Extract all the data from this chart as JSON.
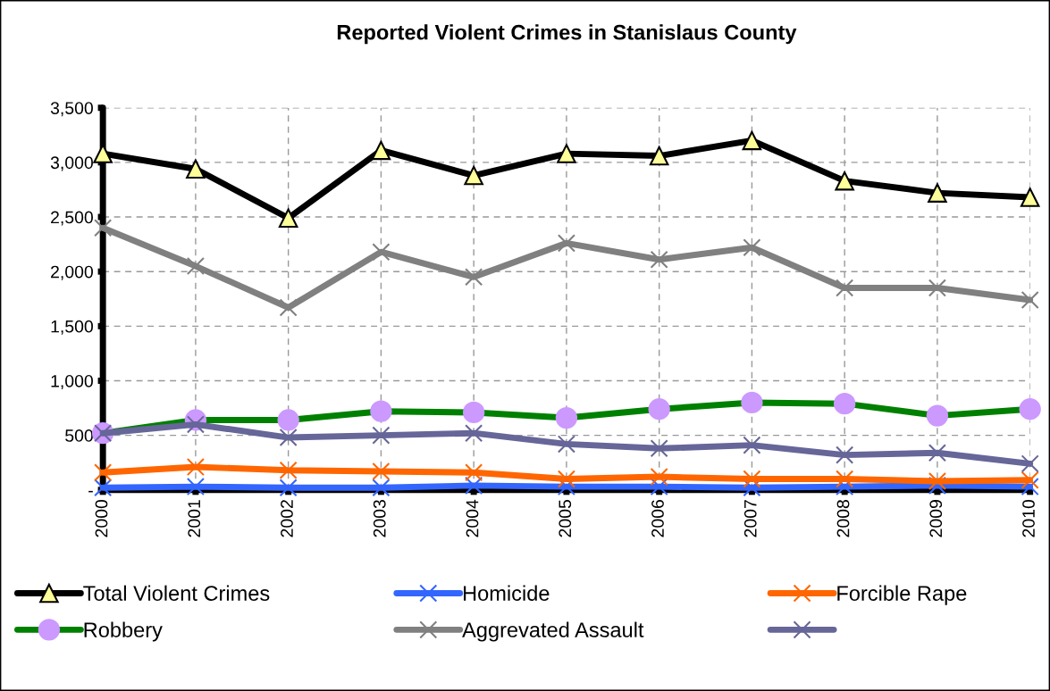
{
  "chart_data": {
    "type": "line",
    "title": "Reported Violent Crimes in Stanislaus County",
    "categories": [
      "2000",
      "2001",
      "2002",
      "2003",
      "2004",
      "2005",
      "2006",
      "2007",
      "2008",
      "2009",
      "2010"
    ],
    "series": [
      {
        "name": "Total Violent Crimes",
        "color": "#000000",
        "marker": "triangle",
        "values": [
          3080,
          2940,
          2490,
          3110,
          2880,
          3080,
          3060,
          3200,
          2830,
          2720,
          2680
        ]
      },
      {
        "name": "Homicide",
        "color": "#3366ff",
        "marker": "cross",
        "values": [
          20,
          30,
          20,
          20,
          40,
          30,
          30,
          20,
          30,
          40,
          30
        ]
      },
      {
        "name": "Forcible Rape",
        "color": "#ff6600",
        "marker": "cross",
        "values": [
          160,
          210,
          180,
          170,
          160,
          100,
          120,
          100,
          100,
          80,
          90
        ]
      },
      {
        "name": "Robbery",
        "color": "#008000",
        "marker": "circle",
        "values": [
          520,
          640,
          640,
          720,
          710,
          660,
          740,
          800,
          790,
          680,
          740
        ]
      },
      {
        "name": "Aggrevated Assault",
        "color": "#808080",
        "marker": "cross",
        "values": [
          2400,
          2050,
          1670,
          2180,
          1950,
          2260,
          2110,
          2220,
          1850,
          1850,
          1740
        ]
      },
      {
        "color": "#666699",
        "marker": "cross",
        "values": [
          520,
          600,
          480,
          500,
          520,
          420,
          380,
          410,
          320,
          340,
          240
        ]
      }
    ],
    "ylim": [
      0,
      3500
    ],
    "yticks": [
      {
        "value": 0,
        "label": "-"
      },
      500,
      {
        "value": 1000,
        "label": "1,000"
      },
      {
        "value": 1500,
        "label": "1,500"
      },
      {
        "value": 2000,
        "label": "2,000"
      },
      {
        "value": 2500,
        "label": "2,500"
      },
      {
        "value": 3000,
        "label": "3,000"
      },
      {
        "value": 3500,
        "label": "3,500"
      }
    ],
    "grid": true,
    "legend": "bottom"
  }
}
